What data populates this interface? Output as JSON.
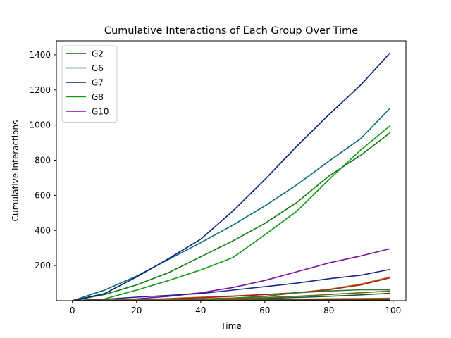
{
  "chart_data": {
    "type": "line",
    "title": "Cumulative Interactions of Each Group Over Time",
    "xlabel": "Time",
    "ylabel": "Cumulative Interactions",
    "xlim": [
      -5,
      104
    ],
    "ylim": [
      0,
      1480
    ],
    "xticks": [
      0,
      20,
      40,
      60,
      80,
      100
    ],
    "yticks": [
      200,
      400,
      600,
      800,
      1000,
      1200,
      1400
    ],
    "grid": false,
    "legend_position": "top-left",
    "legend_names": [
      "G2",
      "G6",
      "G7",
      "G8",
      "G10"
    ],
    "x": [
      0,
      10,
      20,
      30,
      40,
      50,
      60,
      70,
      80,
      90,
      99
    ],
    "series": [
      {
        "name": "G2",
        "color": "#107a10",
        "values": [
          0,
          35,
          90,
          160,
          250,
          340,
          440,
          560,
          710,
          830,
          955
        ]
      },
      {
        "name": "G6",
        "color": "#0a6a7a",
        "values": [
          0,
          60,
          140,
          235,
          330,
          430,
          540,
          660,
          795,
          925,
          1095
        ]
      },
      {
        "name": "G7",
        "color": "#0a1f7a",
        "values": [
          0,
          40,
          135,
          240,
          350,
          510,
          690,
          880,
          1060,
          1230,
          1410
        ]
      },
      {
        "name": "G8",
        "color": "#139a13",
        "values": [
          0,
          10,
          60,
          115,
          175,
          245,
          375,
          510,
          690,
          860,
          995
        ]
      },
      {
        "name": "G10",
        "color": "#7a10a0",
        "values": [
          0,
          2,
          10,
          25,
          45,
          75,
          115,
          165,
          215,
          255,
          295
        ]
      },
      {
        "color": "#1a2a8a",
        "values": [
          0,
          8,
          20,
          30,
          40,
          60,
          80,
          100,
          125,
          145,
          178
        ]
      },
      {
        "color": "#c08020",
        "values": [
          0,
          3,
          6,
          12,
          20,
          27,
          35,
          45,
          65,
          95,
          135
        ]
      },
      {
        "color": "#a02020",
        "values": [
          0,
          2,
          5,
          10,
          17,
          25,
          35,
          45,
          62,
          90,
          130
        ]
      },
      {
        "color": "#2a7a2a",
        "values": [
          0,
          1,
          3,
          6,
          10,
          15,
          25,
          45,
          55,
          62,
          62
        ]
      },
      {
        "color": "#6a6a20",
        "values": [
          0,
          1,
          3,
          5,
          8,
          12,
          18,
          25,
          35,
          45,
          55
        ]
      },
      {
        "color": "#1a5a3a",
        "values": [
          0,
          0,
          1,
          3,
          5,
          8,
          12,
          18,
          25,
          33,
          42
        ]
      },
      {
        "color": "#a06010",
        "values": [
          0,
          0,
          1,
          2,
          3,
          5,
          7,
          9,
          11,
          12,
          14
        ]
      },
      {
        "color": "#7a3a10",
        "values": [
          0,
          0,
          0,
          1,
          2,
          3,
          4,
          5,
          6,
          7,
          8
        ]
      },
      {
        "color": "#303030",
        "values": [
          0,
          0,
          0,
          0,
          1,
          1,
          2,
          2,
          3,
          3,
          4
        ]
      }
    ]
  }
}
